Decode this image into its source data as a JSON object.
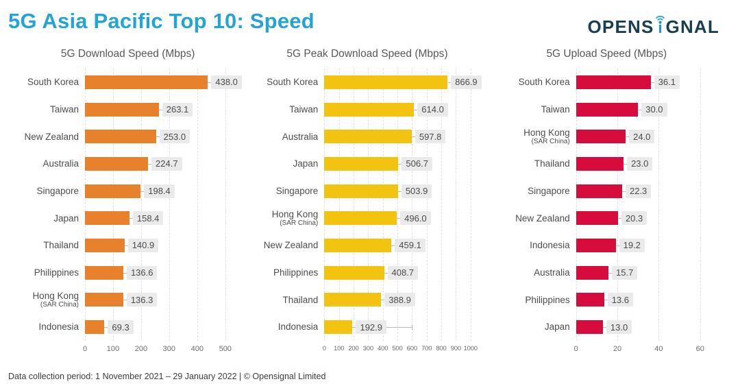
{
  "page": {
    "title": "5G Asia Pacific Top 10: Speed",
    "logo": {
      "part1": "OPENS",
      "part2": "GNAL",
      "name": "Opensignal",
      "wifi_icon": "wifi-arcs-over-i"
    },
    "footer": "Data collection period: 1 November 2021 – 29 January 2022 |  © Opensignal Limited"
  },
  "colors": {
    "title_blue": "#24A3D5",
    "logo_navy": "#16404F",
    "logo_teal": "#2596BF",
    "logo_arcs_blue": "#29A8D6",
    "download_orange": "#E8812B",
    "peak_yellow": "#F2C411",
    "upload_red": "#D60D3C",
    "value_badge_bg": "#EAEAEA",
    "text_gray": "#4D4D4D",
    "grid_gray": "#E0E0E0"
  },
  "chart_data": [
    {
      "type": "bar",
      "orientation": "horizontal",
      "title": "5G Download Speed (Mbps)",
      "bar_color": "#E8812B",
      "xlim": [
        0,
        560
      ],
      "tick_labels": [
        0,
        100,
        200,
        300,
        400,
        500
      ],
      "grid": "dashed-vertical",
      "value_label_decimals": 1,
      "categories": [
        "South Korea",
        "Taiwan",
        "New Zealand",
        "Australia",
        "Singapore",
        "Japan",
        "Thailand",
        "Philippines",
        "Hong Kong",
        "Indonesia"
      ],
      "category_sublabels": {
        "Hong Kong": "(SAR China)"
      },
      "values": [
        438.0,
        263.1,
        253.0,
        224.7,
        198.4,
        158.4,
        140.9,
        136.6,
        136.3,
        69.3
      ]
    },
    {
      "type": "bar",
      "orientation": "horizontal",
      "title": "5G Peak Download Speed (Mbps)",
      "bar_color": "#F2C411",
      "xlim": [
        0,
        1075
      ],
      "tick_labels": [
        0,
        100,
        200,
        300,
        400,
        500,
        600,
        700,
        800,
        900,
        1000
      ],
      "grid": "dashed-vertical",
      "value_label_decimals": 1,
      "categories": [
        "South Korea",
        "Taiwan",
        "Australia",
        "Japan",
        "Singapore",
        "Hong Kong",
        "New Zealand",
        "Philippines",
        "Thailand",
        "Indonesia"
      ],
      "category_sublabels": {
        "Hong Kong": "(SAR China)"
      },
      "values": [
        866.9,
        614.0,
        597.8,
        506.7,
        503.9,
        496.0,
        459.1,
        408.7,
        388.9,
        192.9
      ],
      "error_high": {
        "Indonesia": 600
      }
    },
    {
      "type": "bar",
      "orientation": "horizontal",
      "title": "5G Upload Speed (Mbps)",
      "bar_color": "#D60D3C",
      "xlim": [
        0,
        70
      ],
      "tick_labels": [
        0,
        20,
        40,
        60
      ],
      "grid": "dashed-vertical",
      "value_label_decimals": 1,
      "categories": [
        "South Korea",
        "Taiwan",
        "Hong Kong",
        "Thailand",
        "Singapore",
        "New Zealand",
        "Indonesia",
        "Australia",
        "Philippines",
        "Japan"
      ],
      "category_sublabels": {
        "Hong Kong": "(SAR China)"
      },
      "values": [
        36.1,
        30.0,
        24.0,
        23.0,
        22.3,
        20.3,
        19.2,
        15.7,
        13.6,
        13.0
      ]
    }
  ]
}
